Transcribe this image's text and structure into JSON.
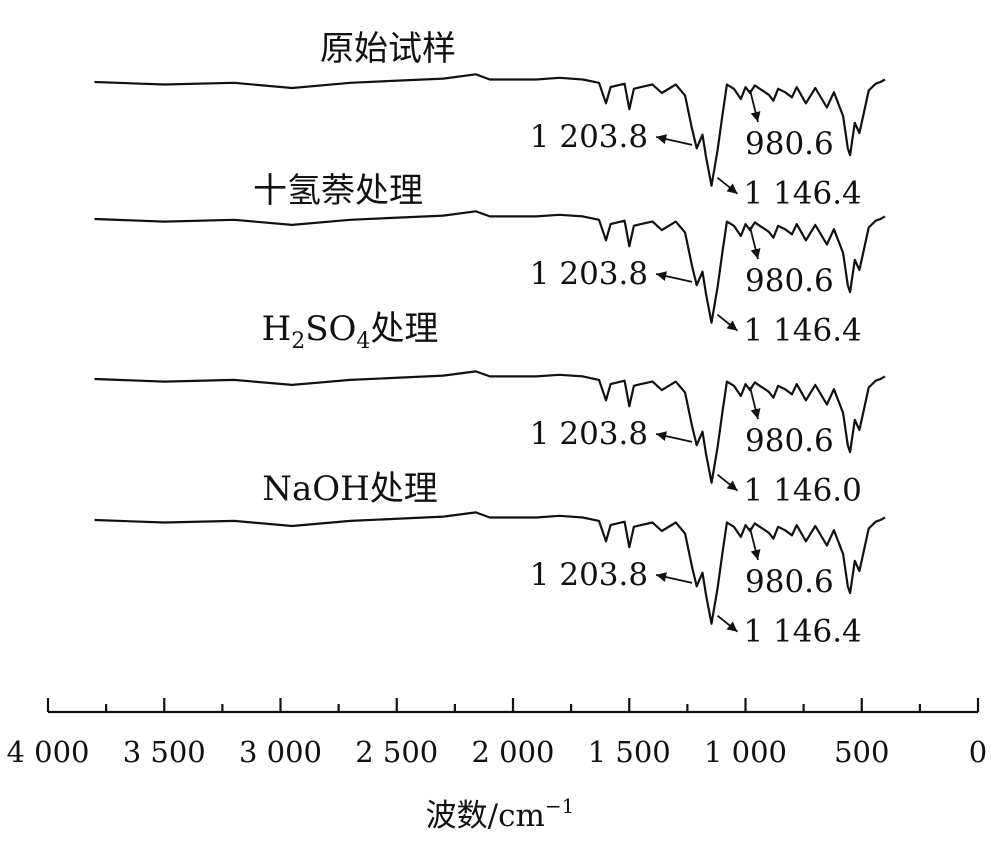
{
  "chart_data": {
    "type": "line",
    "title": "",
    "xlabel_main": "波数/cm",
    "xlabel_sup": "−1",
    "ylabel": "",
    "xlim": [
      4000,
      0
    ],
    "x_ticks": [
      {
        "value": 4000,
        "label": "4 000"
      },
      {
        "value": 3500,
        "label": "3 500"
      },
      {
        "value": 3000,
        "label": "3 000"
      },
      {
        "value": 2500,
        "label": "2 500"
      },
      {
        "value": 2000,
        "label": "2 000"
      },
      {
        "value": 1500,
        "label": "1 500"
      },
      {
        "value": 1000,
        "label": "1 000"
      },
      {
        "value": 500,
        "label": "500"
      },
      {
        "value": 0,
        "label": "0"
      }
    ],
    "x_minor_step": 250,
    "grid": false,
    "series_points_note": "transmittance relative to baseline (0 = baseline, negative = absorption dip)",
    "series": [
      {
        "name": "原始试样",
        "name_parts": [
          {
            "text": "原始试样",
            "sub": false
          }
        ],
        "annotations": [
          {
            "label": "1 203.8",
            "x": 1203.8
          },
          {
            "label": "980.6",
            "x": 980.6
          },
          {
            "label": "1 146.4",
            "x": 1146.4
          }
        ],
        "points": [
          [
            3800,
            0
          ],
          [
            3500,
            -3
          ],
          [
            3200,
            -1
          ],
          [
            2950,
            -7
          ],
          [
            2700,
            -1
          ],
          [
            2300,
            4
          ],
          [
            2160,
            9
          ],
          [
            2100,
            3
          ],
          [
            1900,
            3
          ],
          [
            1800,
            5
          ],
          [
            1700,
            3
          ],
          [
            1630,
            -1
          ],
          [
            1600,
            -25
          ],
          [
            1580,
            -6
          ],
          [
            1520,
            -2
          ],
          [
            1500,
            -32
          ],
          [
            1480,
            -8
          ],
          [
            1450,
            -6
          ],
          [
            1400,
            -3
          ],
          [
            1360,
            -13
          ],
          [
            1300,
            -3
          ],
          [
            1260,
            -16
          ],
          [
            1230,
            -55
          ],
          [
            1210,
            -78
          ],
          [
            1203.8,
            -74
          ],
          [
            1185,
            -62
          ],
          [
            1170,
            -88
          ],
          [
            1146.4,
            -122
          ],
          [
            1120,
            -80
          ],
          [
            1100,
            -40
          ],
          [
            1080,
            -3
          ],
          [
            1050,
            -8
          ],
          [
            1020,
            -20
          ],
          [
            1000,
            -6
          ],
          [
            980.6,
            -13
          ],
          [
            960,
            -4
          ],
          [
            900,
            -15
          ],
          [
            880,
            -22
          ],
          [
            860,
            -8
          ],
          [
            830,
            -12
          ],
          [
            800,
            -18
          ],
          [
            780,
            -6
          ],
          [
            740,
            -25
          ],
          [
            700,
            -7
          ],
          [
            650,
            -30
          ],
          [
            620,
            -12
          ],
          [
            580,
            -40
          ],
          [
            560,
            -78
          ],
          [
            550,
            -86
          ],
          [
            530,
            -48
          ],
          [
            510,
            -60
          ],
          [
            490,
            -35
          ],
          [
            470,
            -10
          ],
          [
            440,
            -2
          ],
          [
            420,
            0
          ],
          [
            400,
            3
          ]
        ]
      },
      {
        "name": "十氢萘处理",
        "name_parts": [
          {
            "text": "十氢萘处理",
            "sub": false
          }
        ],
        "annotations": [
          {
            "label": "1 203.8",
            "x": 1203.8
          },
          {
            "label": "980.6",
            "x": 980.6
          },
          {
            "label": "1 146.4",
            "x": 1146.4
          }
        ],
        "points": [
          [
            3800,
            0
          ],
          [
            3500,
            -3
          ],
          [
            3200,
            -1
          ],
          [
            2950,
            -7
          ],
          [
            2700,
            -1
          ],
          [
            2300,
            4
          ],
          [
            2160,
            9
          ],
          [
            2100,
            3
          ],
          [
            1900,
            3
          ],
          [
            1800,
            5
          ],
          [
            1700,
            3
          ],
          [
            1630,
            -1
          ],
          [
            1600,
            -25
          ],
          [
            1580,
            -6
          ],
          [
            1520,
            -2
          ],
          [
            1500,
            -32
          ],
          [
            1480,
            -8
          ],
          [
            1450,
            -6
          ],
          [
            1400,
            -3
          ],
          [
            1360,
            -13
          ],
          [
            1300,
            -3
          ],
          [
            1260,
            -16
          ],
          [
            1230,
            -55
          ],
          [
            1210,
            -78
          ],
          [
            1203.8,
            -74
          ],
          [
            1185,
            -62
          ],
          [
            1170,
            -88
          ],
          [
            1146.4,
            -122
          ],
          [
            1120,
            -80
          ],
          [
            1100,
            -40
          ],
          [
            1080,
            -3
          ],
          [
            1050,
            -8
          ],
          [
            1020,
            -20
          ],
          [
            1000,
            -6
          ],
          [
            980.6,
            -13
          ],
          [
            960,
            -4
          ],
          [
            900,
            -15
          ],
          [
            880,
            -22
          ],
          [
            860,
            -8
          ],
          [
            830,
            -12
          ],
          [
            800,
            -18
          ],
          [
            780,
            -6
          ],
          [
            740,
            -25
          ],
          [
            700,
            -7
          ],
          [
            650,
            -30
          ],
          [
            620,
            -12
          ],
          [
            580,
            -40
          ],
          [
            560,
            -78
          ],
          [
            550,
            -86
          ],
          [
            530,
            -48
          ],
          [
            510,
            -60
          ],
          [
            490,
            -35
          ],
          [
            470,
            -10
          ],
          [
            440,
            -2
          ],
          [
            420,
            0
          ],
          [
            400,
            3
          ]
        ]
      },
      {
        "name": "H2SO4处理",
        "name_parts": [
          {
            "text": "H",
            "sub": false
          },
          {
            "text": "2",
            "sub": true
          },
          {
            "text": "SO",
            "sub": false
          },
          {
            "text": "4",
            "sub": true
          },
          {
            "text": "处理",
            "sub": false
          }
        ],
        "annotations": [
          {
            "label": "1 203.8",
            "x": 1203.8
          },
          {
            "label": "980.6",
            "x": 980.6
          },
          {
            "label": "1 146.0",
            "x": 1146.0
          }
        ],
        "points": [
          [
            3800,
            0
          ],
          [
            3500,
            -3
          ],
          [
            3200,
            -1
          ],
          [
            2950,
            -7
          ],
          [
            2700,
            -1
          ],
          [
            2300,
            4
          ],
          [
            2160,
            9
          ],
          [
            2100,
            3
          ],
          [
            1900,
            3
          ],
          [
            1800,
            5
          ],
          [
            1700,
            3
          ],
          [
            1630,
            -1
          ],
          [
            1600,
            -25
          ],
          [
            1580,
            -6
          ],
          [
            1520,
            -2
          ],
          [
            1500,
            -32
          ],
          [
            1480,
            -8
          ],
          [
            1450,
            -6
          ],
          [
            1400,
            -3
          ],
          [
            1360,
            -13
          ],
          [
            1300,
            -3
          ],
          [
            1260,
            -16
          ],
          [
            1230,
            -55
          ],
          [
            1210,
            -78
          ],
          [
            1203.8,
            -74
          ],
          [
            1185,
            -62
          ],
          [
            1170,
            -88
          ],
          [
            1146.0,
            -122
          ],
          [
            1120,
            -80
          ],
          [
            1100,
            -40
          ],
          [
            1080,
            -3
          ],
          [
            1050,
            -8
          ],
          [
            1020,
            -20
          ],
          [
            1000,
            -6
          ],
          [
            980.6,
            -13
          ],
          [
            960,
            -4
          ],
          [
            900,
            -15
          ],
          [
            880,
            -22
          ],
          [
            860,
            -8
          ],
          [
            830,
            -12
          ],
          [
            800,
            -18
          ],
          [
            780,
            -6
          ],
          [
            740,
            -25
          ],
          [
            700,
            -7
          ],
          [
            650,
            -30
          ],
          [
            620,
            -12
          ],
          [
            580,
            -40
          ],
          [
            560,
            -78
          ],
          [
            550,
            -86
          ],
          [
            530,
            -48
          ],
          [
            510,
            -60
          ],
          [
            490,
            -35
          ],
          [
            470,
            -10
          ],
          [
            440,
            -2
          ],
          [
            420,
            0
          ],
          [
            400,
            3
          ]
        ]
      },
      {
        "name": "NaOH处理",
        "name_parts": [
          {
            "text": "NaOH处理",
            "sub": false
          }
        ],
        "annotations": [
          {
            "label": "1 203.8",
            "x": 1203.8
          },
          {
            "label": "980.6",
            "x": 980.6
          },
          {
            "label": "1 146.4",
            "x": 1146.4
          }
        ],
        "points": [
          [
            3800,
            0
          ],
          [
            3500,
            -3
          ],
          [
            3200,
            -1
          ],
          [
            2950,
            -7
          ],
          [
            2700,
            -1
          ],
          [
            2300,
            4
          ],
          [
            2160,
            9
          ],
          [
            2100,
            3
          ],
          [
            1900,
            3
          ],
          [
            1800,
            5
          ],
          [
            1700,
            3
          ],
          [
            1630,
            -1
          ],
          [
            1600,
            -25
          ],
          [
            1580,
            -6
          ],
          [
            1520,
            -2
          ],
          [
            1500,
            -32
          ],
          [
            1480,
            -8
          ],
          [
            1450,
            -6
          ],
          [
            1400,
            -3
          ],
          [
            1360,
            -13
          ],
          [
            1300,
            -3
          ],
          [
            1260,
            -16
          ],
          [
            1230,
            -55
          ],
          [
            1210,
            -78
          ],
          [
            1203.8,
            -74
          ],
          [
            1185,
            -62
          ],
          [
            1170,
            -88
          ],
          [
            1146.4,
            -122
          ],
          [
            1120,
            -80
          ],
          [
            1100,
            -40
          ],
          [
            1080,
            -3
          ],
          [
            1050,
            -8
          ],
          [
            1020,
            -20
          ],
          [
            1000,
            -6
          ],
          [
            980.6,
            -13
          ],
          [
            960,
            -4
          ],
          [
            900,
            -15
          ],
          [
            880,
            -22
          ],
          [
            860,
            -8
          ],
          [
            830,
            -12
          ],
          [
            800,
            -18
          ],
          [
            780,
            -6
          ],
          [
            740,
            -25
          ],
          [
            700,
            -7
          ],
          [
            650,
            -30
          ],
          [
            620,
            -12
          ],
          [
            580,
            -40
          ],
          [
            560,
            -78
          ],
          [
            550,
            -86
          ],
          [
            530,
            -48
          ],
          [
            510,
            -60
          ],
          [
            490,
            -35
          ],
          [
            470,
            -10
          ],
          [
            440,
            -2
          ],
          [
            420,
            0
          ],
          [
            400,
            3
          ]
        ]
      }
    ]
  }
}
